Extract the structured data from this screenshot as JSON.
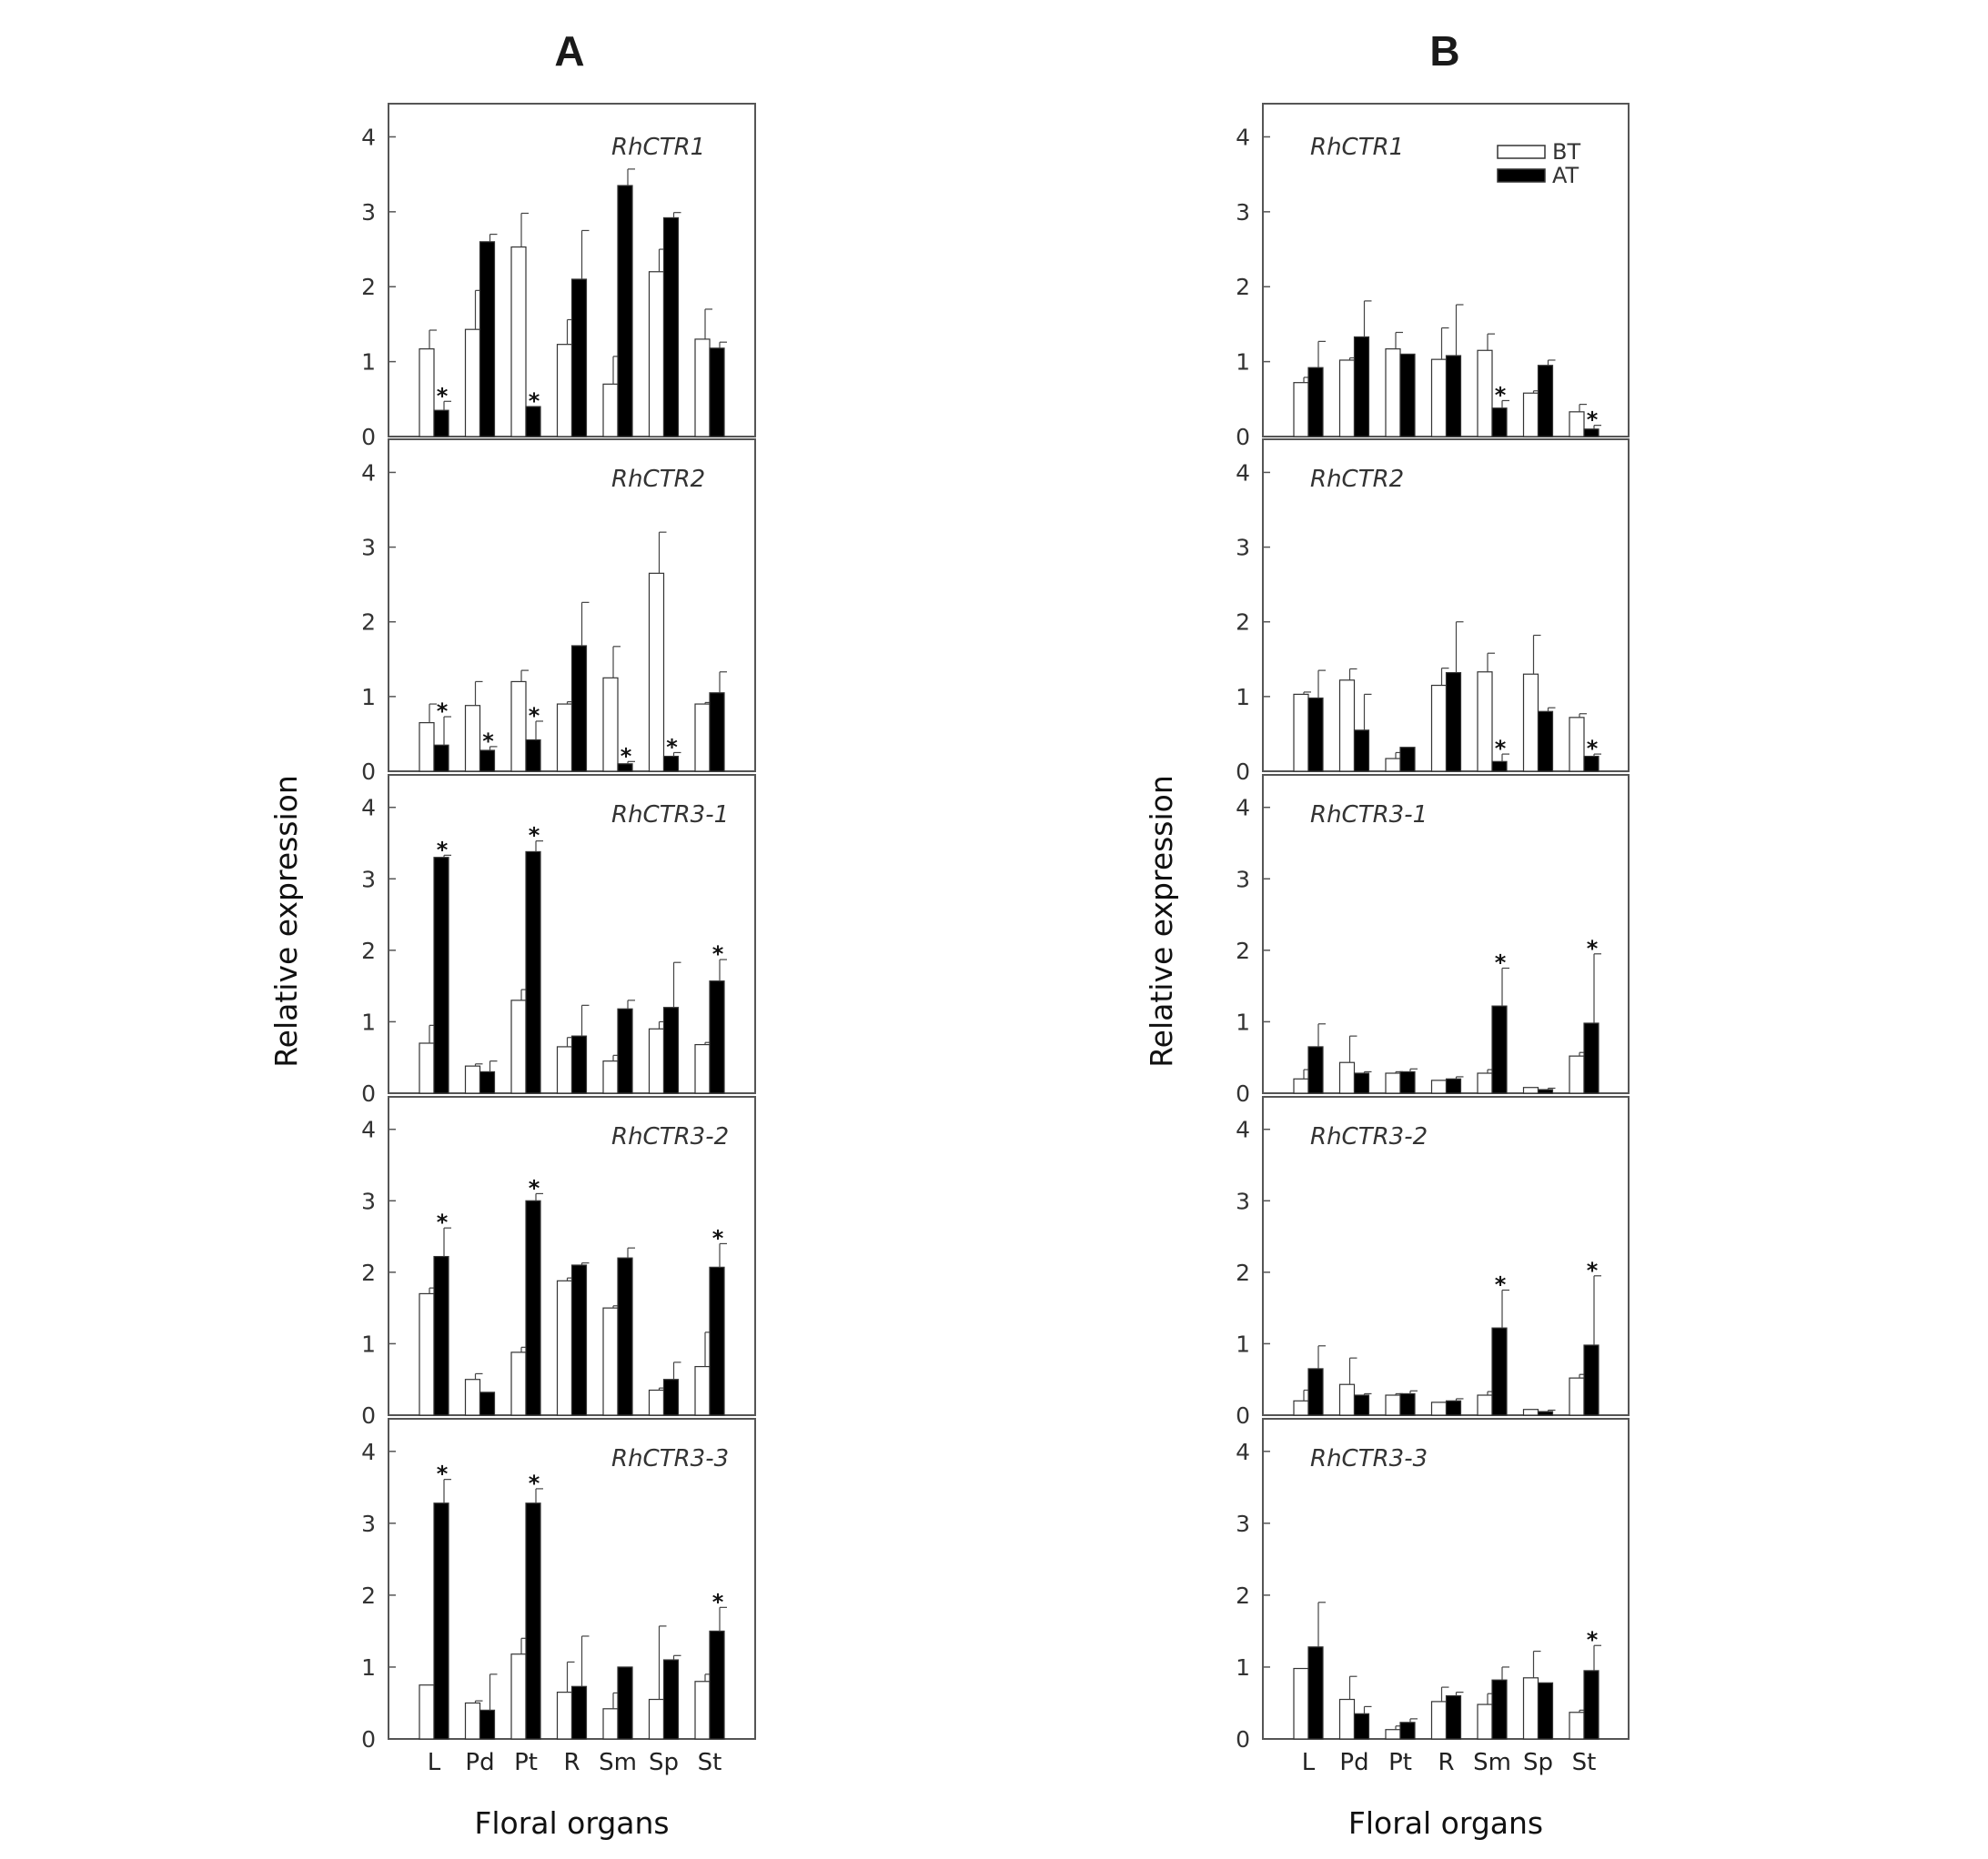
{
  "figure": {
    "panel_labels": [
      "A",
      "B"
    ],
    "legend": [
      {
        "name": "BT",
        "fill": "#ffffff"
      },
      {
        "name": "AT",
        "fill": "#000000"
      }
    ],
    "colors": {
      "BT": "#ffffff",
      "AT": "#000000",
      "stroke": "#333333"
    }
  },
  "chart_data": [
    {
      "type": "bar",
      "panel": "A",
      "xlabel": "Floral organs",
      "ylabel": "Relative expression",
      "ylim": [
        0,
        4.2
      ],
      "yticks": [
        "0",
        "1",
        "2",
        "3",
        "4"
      ],
      "categories": [
        "L",
        "Pd",
        "Pt",
        "R",
        "Sm",
        "Sp",
        "St"
      ],
      "legend_shown": false,
      "subplots": [
        {
          "gene": "RhCTR1",
          "series": [
            {
              "name": "BT",
              "values": [
                1.17,
                1.43,
                2.53,
                1.23,
                0.7,
                2.2,
                1.3
              ],
              "err": [
                0.25,
                0.52,
                0.45,
                0.33,
                0.37,
                0.3,
                0.4
              ]
            },
            {
              "name": "AT",
              "values": [
                0.35,
                2.6,
                0.4,
                2.1,
                3.35,
                2.92,
                1.18
              ],
              "err": [
                0.12,
                0.1,
                0.0,
                0.65,
                0.22,
                0.07,
                0.08
              ]
            }
          ],
          "stars": [
            {
              "category": "L",
              "series": "AT"
            },
            {
              "category": "Pt",
              "series": "AT"
            }
          ]
        },
        {
          "gene": "RhCTR2",
          "series": [
            {
              "name": "BT",
              "values": [
                0.65,
                0.88,
                1.2,
                0.9,
                1.25,
                2.65,
                0.9
              ],
              "err": [
                0.25,
                0.32,
                0.15,
                0.03,
                0.42,
                0.55,
                0.02
              ]
            },
            {
              "name": "AT",
              "values": [
                0.35,
                0.28,
                0.42,
                1.68,
                0.1,
                0.2,
                1.05
              ],
              "err": [
                0.38,
                0.05,
                0.25,
                0.58,
                0.03,
                0.05,
                0.28
              ]
            }
          ],
          "stars": [
            {
              "category": "L",
              "series": "AT"
            },
            {
              "category": "Pd",
              "series": "AT"
            },
            {
              "category": "Pt",
              "series": "AT"
            },
            {
              "category": "Sm",
              "series": "AT"
            },
            {
              "category": "Sp",
              "series": "AT"
            }
          ]
        },
        {
          "gene": "RhCTR3-1",
          "series": [
            {
              "name": "BT",
              "values": [
                0.7,
                0.38,
                1.3,
                0.65,
                0.45,
                0.9,
                0.68
              ],
              "err": [
                0.25,
                0.03,
                0.15,
                0.13,
                0.08,
                0.1,
                0.03
              ]
            },
            {
              "name": "AT",
              "values": [
                3.3,
                0.3,
                3.38,
                0.8,
                1.18,
                1.2,
                1.57
              ],
              "err": [
                0.03,
                0.15,
                0.15,
                0.43,
                0.12,
                0.63,
                0.3
              ]
            }
          ],
          "stars": [
            {
              "category": "L",
              "series": "AT"
            },
            {
              "category": "Pt",
              "series": "AT"
            },
            {
              "category": "St",
              "series": "AT"
            }
          ]
        },
        {
          "gene": "RhCTR3-2",
          "series": [
            {
              "name": "BT",
              "values": [
                1.7,
                0.5,
                0.88,
                1.88,
                1.5,
                0.35,
                0.68
              ],
              "err": [
                0.08,
                0.08,
                0.07,
                0.04,
                0.03,
                0.03,
                0.48
              ]
            },
            {
              "name": "AT",
              "values": [
                2.22,
                0.32,
                3.0,
                2.1,
                2.2,
                0.5,
                2.07
              ],
              "err": [
                0.4,
                0.0,
                0.1,
                0.03,
                0.14,
                0.24,
                0.33
              ]
            }
          ],
          "stars": [
            {
              "category": "L",
              "series": "AT"
            },
            {
              "category": "Pt",
              "series": "AT"
            },
            {
              "category": "St",
              "series": "AT"
            }
          ]
        },
        {
          "gene": "RhCTR3-3",
          "series": [
            {
              "name": "BT",
              "values": [
                0.75,
                0.5,
                1.18,
                0.65,
                0.42,
                0.55,
                0.8
              ],
              "err": [
                0.0,
                0.03,
                0.22,
                0.42,
                0.22,
                1.02,
                0.1
              ]
            },
            {
              "name": "AT",
              "values": [
                3.28,
                0.4,
                3.28,
                0.73,
                1.0,
                1.1,
                1.5
              ],
              "err": [
                0.33,
                0.5,
                0.2,
                0.7,
                0.0,
                0.06,
                0.33
              ]
            }
          ],
          "stars": [
            {
              "category": "L",
              "series": "AT"
            },
            {
              "category": "Pt",
              "series": "AT"
            },
            {
              "category": "St",
              "series": "AT"
            }
          ]
        }
      ]
    },
    {
      "type": "bar",
      "panel": "B",
      "xlabel": "Floral organs",
      "ylabel": "Relative expression",
      "ylim": [
        0,
        4.2
      ],
      "yticks": [
        "0",
        "1",
        "2",
        "3",
        "4"
      ],
      "categories": [
        "L",
        "Pd",
        "Pt",
        "R",
        "Sm",
        "Sp",
        "St"
      ],
      "legend_shown": true,
      "subplots": [
        {
          "gene": "RhCTR1",
          "series": [
            {
              "name": "BT",
              "values": [
                0.72,
                1.02,
                1.17,
                1.03,
                1.15,
                0.58,
                0.33
              ],
              "err": [
                0.07,
                0.03,
                0.22,
                0.42,
                0.22,
                0.03,
                0.1
              ]
            },
            {
              "name": "AT",
              "values": [
                0.92,
                1.33,
                1.1,
                1.08,
                0.38,
                0.95,
                0.1
              ],
              "err": [
                0.35,
                0.48,
                0.0,
                0.68,
                0.1,
                0.07,
                0.05
              ]
            }
          ],
          "stars": [
            {
              "category": "Sm",
              "series": "AT"
            },
            {
              "category": "St",
              "series": "AT"
            }
          ]
        },
        {
          "gene": "RhCTR2",
          "series": [
            {
              "name": "BT",
              "values": [
                1.03,
                1.22,
                0.17,
                1.15,
                1.33,
                1.3,
                0.72
              ],
              "err": [
                0.03,
                0.15,
                0.08,
                0.23,
                0.25,
                0.52,
                0.05
              ]
            },
            {
              "name": "AT",
              "values": [
                0.98,
                0.55,
                0.32,
                1.32,
                0.13,
                0.8,
                0.2
              ],
              "err": [
                0.37,
                0.48,
                0.0,
                0.68,
                0.1,
                0.05,
                0.03
              ]
            }
          ],
          "stars": [
            {
              "category": "Sm",
              "series": "AT"
            },
            {
              "category": "St",
              "series": "AT"
            }
          ]
        },
        {
          "gene": "RhCTR3-1",
          "series": [
            {
              "name": "BT",
              "values": [
                0.2,
                0.43,
                0.28,
                0.18,
                0.28,
                0.08,
                0.52
              ],
              "err": [
                0.13,
                0.37,
                0.02,
                0.0,
                0.05,
                0.0,
                0.05
              ]
            },
            {
              "name": "AT",
              "values": [
                0.65,
                0.28,
                0.3,
                0.2,
                1.22,
                0.05,
                0.98
              ],
              "err": [
                0.32,
                0.02,
                0.04,
                0.03,
                0.53,
                0.02,
                0.97
              ]
            }
          ],
          "stars": [
            {
              "category": "Sm",
              "series": "AT"
            },
            {
              "category": "St",
              "series": "AT"
            }
          ]
        },
        {
          "gene": "RhCTR3-2",
          "series": [
            {
              "name": "BT",
              "values": [
                0.2,
                0.43,
                0.28,
                0.18,
                0.28,
                0.08,
                0.52
              ],
              "err": [
                0.15,
                0.37,
                0.02,
                0.0,
                0.05,
                0.0,
                0.05
              ]
            },
            {
              "name": "AT",
              "values": [
                0.65,
                0.28,
                0.3,
                0.2,
                1.22,
                0.05,
                0.98
              ],
              "err": [
                0.32,
                0.02,
                0.04,
                0.03,
                0.53,
                0.02,
                0.97
              ]
            }
          ],
          "stars": [
            {
              "category": "Sm",
              "series": "AT"
            },
            {
              "category": "St",
              "series": "AT"
            }
          ]
        },
        {
          "gene": "RhCTR3-3",
          "series": [
            {
              "name": "BT",
              "values": [
                0.98,
                0.55,
                0.13,
                0.52,
                0.48,
                0.85,
                0.37
              ],
              "err": [
                0.0,
                0.32,
                0.05,
                0.2,
                0.15,
                0.37,
                0.03
              ]
            },
            {
              "name": "AT",
              "values": [
                1.28,
                0.35,
                0.23,
                0.6,
                0.82,
                0.78,
                0.95
              ],
              "err": [
                0.62,
                0.1,
                0.05,
                0.05,
                0.18,
                0.0,
                0.35
              ]
            }
          ],
          "stars": [
            {
              "category": "St",
              "series": "AT"
            }
          ]
        }
      ]
    }
  ]
}
